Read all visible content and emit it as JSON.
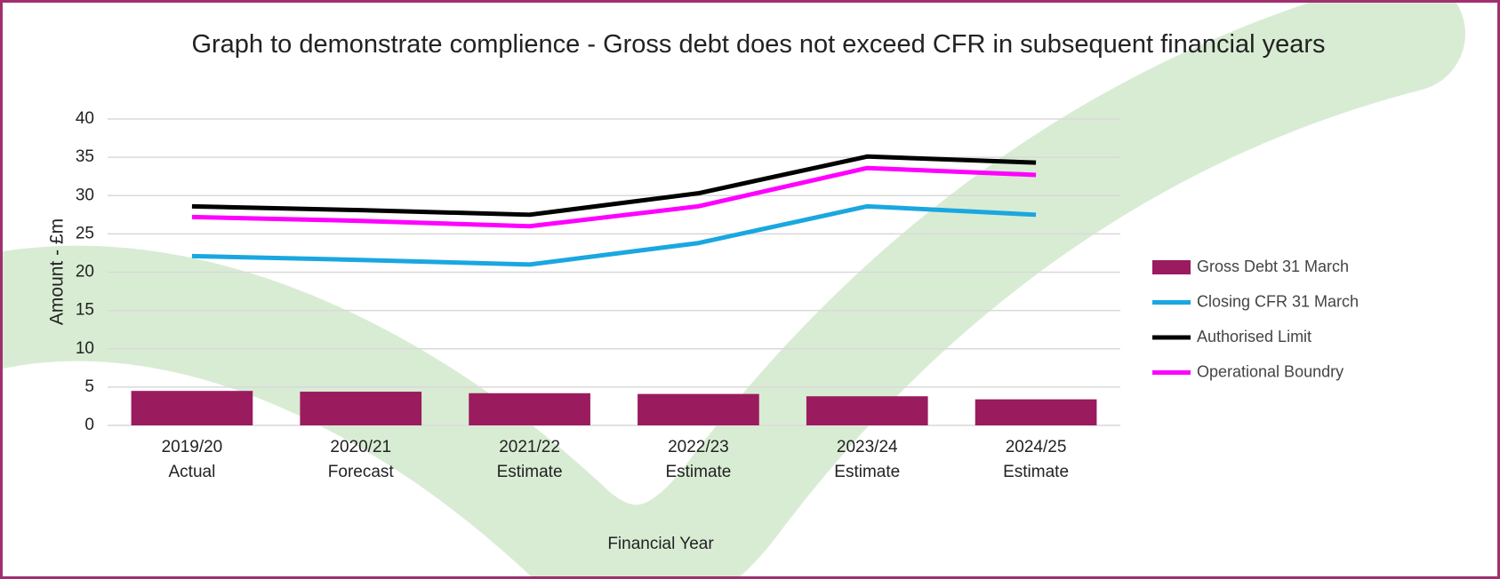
{
  "chart_data": {
    "type": "combo",
    "title": "Graph to demonstrate complience - Gross debt does not exceed CFR in subsequent financial years",
    "x_label": "Financial Year",
    "y_label": "Amount - £m",
    "categories": [
      [
        "2019/20",
        "Actual"
      ],
      [
        "2020/21",
        "Forecast"
      ],
      [
        "2021/22",
        "Estimate"
      ],
      [
        "2022/23",
        "Estimate"
      ],
      [
        "2023/24",
        "Estimate"
      ],
      [
        "2024/25",
        "Estimate"
      ]
    ],
    "series": [
      {
        "name": "Gross Debt 31 March",
        "type": "bar",
        "color": "#9b1b5f",
        "values": [
          4.5,
          4.4,
          4.2,
          4.1,
          3.8,
          3.4
        ]
      },
      {
        "name": "Closing CFR 31 March",
        "type": "line",
        "color": "#1aa7e0",
        "values": [
          22.1,
          21.6,
          21.0,
          23.8,
          28.6,
          27.5
        ]
      },
      {
        "name": "Authorised Limit",
        "type": "line",
        "color": "#000000",
        "values": [
          28.6,
          28.1,
          27.5,
          30.3,
          35.1,
          34.3
        ]
      },
      {
        "name": "Operational Boundry",
        "type": "line",
        "color": "#ff00ff",
        "values": [
          27.2,
          26.7,
          26.0,
          28.6,
          33.6,
          32.7
        ]
      }
    ],
    "ylim": [
      0,
      40
    ],
    "yticks": [
      0,
      5,
      10,
      15,
      20,
      25,
      30,
      35,
      40
    ],
    "grid": true,
    "legend": "right"
  }
}
